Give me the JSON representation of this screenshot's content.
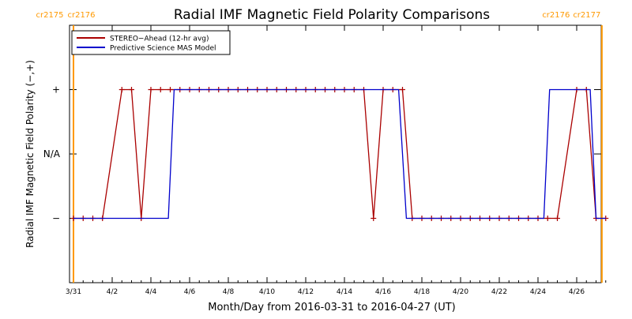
{
  "chart_data": {
    "type": "line",
    "title": "Radial IMF Magnetic Field Polarity Comparisons",
    "xlabel": "Month/Day from 2016-03-31 to 2016-04-27 (UT)",
    "ylabel": "Radial IMF Magnetic Field Polarity (−,+)",
    "xlim": [
      0,
      27.5
    ],
    "ylim": [
      -2,
      2
    ],
    "x_ticks": [
      {
        "day": 0,
        "label": "3/31"
      },
      {
        "day": 2,
        "label": "4/2"
      },
      {
        "day": 4,
        "label": "4/4"
      },
      {
        "day": 6,
        "label": "4/6"
      },
      {
        "day": 8,
        "label": "4/8"
      },
      {
        "day": 10,
        "label": "4/10"
      },
      {
        "day": 12,
        "label": "4/12"
      },
      {
        "day": 14,
        "label": "4/14"
      },
      {
        "day": 16,
        "label": "4/16"
      },
      {
        "day": 18,
        "label": "4/18"
      },
      {
        "day": 20,
        "label": "4/20"
      },
      {
        "day": 22,
        "label": "4/22"
      },
      {
        "day": 24,
        "label": "4/24"
      },
      {
        "day": 26,
        "label": "4/26"
      }
    ],
    "y_ticks": [
      {
        "value": 1,
        "label": "+"
      },
      {
        "value": 0,
        "label": "N/A"
      },
      {
        "value": -1,
        "label": "−"
      }
    ],
    "legend_position": "top-left",
    "carrington": [
      {
        "day": 0.0,
        "labels": [
          "cr2175",
          "cr2176"
        ],
        "color": "#ff9900"
      },
      {
        "day": 27.3,
        "labels": [
          "cr2176",
          "cr2177"
        ],
        "color": "#ff9900"
      }
    ],
    "series": [
      {
        "name": "STEREO−Ahead (12-hr avg)",
        "color": "#aa0000",
        "markers": true,
        "points": [
          [
            0.0,
            -1
          ],
          [
            0.5,
            -1
          ],
          [
            1.0,
            -1
          ],
          [
            1.5,
            -1
          ],
          [
            2.5,
            1
          ],
          [
            3.0,
            1
          ],
          [
            3.5,
            -1
          ],
          [
            4.0,
            1
          ],
          [
            4.5,
            1
          ],
          [
            5.0,
            1
          ],
          [
            5.5,
            1
          ],
          [
            6.0,
            1
          ],
          [
            6.5,
            1
          ],
          [
            7.0,
            1
          ],
          [
            7.5,
            1
          ],
          [
            8.0,
            1
          ],
          [
            8.5,
            1
          ],
          [
            9.0,
            1
          ],
          [
            9.5,
            1
          ],
          [
            10.0,
            1
          ],
          [
            10.5,
            1
          ],
          [
            11.0,
            1
          ],
          [
            11.5,
            1
          ],
          [
            12.0,
            1
          ],
          [
            12.5,
            1
          ],
          [
            13.0,
            1
          ],
          [
            13.5,
            1
          ],
          [
            14.0,
            1
          ],
          [
            14.5,
            1
          ],
          [
            15.0,
            1
          ],
          [
            15.5,
            -1
          ],
          [
            16.0,
            1
          ],
          [
            16.5,
            1
          ],
          [
            17.0,
            1
          ],
          [
            17.5,
            -1
          ],
          [
            18.0,
            -1
          ],
          [
            18.5,
            -1
          ],
          [
            19.0,
            -1
          ],
          [
            19.5,
            -1
          ],
          [
            20.0,
            -1
          ],
          [
            20.5,
            -1
          ],
          [
            21.0,
            -1
          ],
          [
            21.5,
            -1
          ],
          [
            22.0,
            -1
          ],
          [
            22.5,
            -1
          ],
          [
            23.0,
            -1
          ],
          [
            23.5,
            -1
          ],
          [
            24.0,
            -1
          ],
          [
            24.5,
            -1
          ],
          [
            25.0,
            -1
          ],
          [
            26.0,
            1
          ],
          [
            26.5,
            1
          ],
          [
            27.0,
            -1
          ],
          [
            27.5,
            -1
          ]
        ]
      },
      {
        "name": "Predictive Science MAS Model",
        "color": "#0000cc",
        "markers": false,
        "points": [
          [
            0.0,
            -1
          ],
          [
            4.9,
            -1
          ],
          [
            5.2,
            1
          ],
          [
            16.8,
            1
          ],
          [
            17.2,
            -1
          ],
          [
            24.3,
            -1
          ],
          [
            24.6,
            1
          ],
          [
            26.7,
            1
          ],
          [
            27.0,
            -1
          ],
          [
            27.5,
            -1
          ]
        ]
      }
    ]
  }
}
